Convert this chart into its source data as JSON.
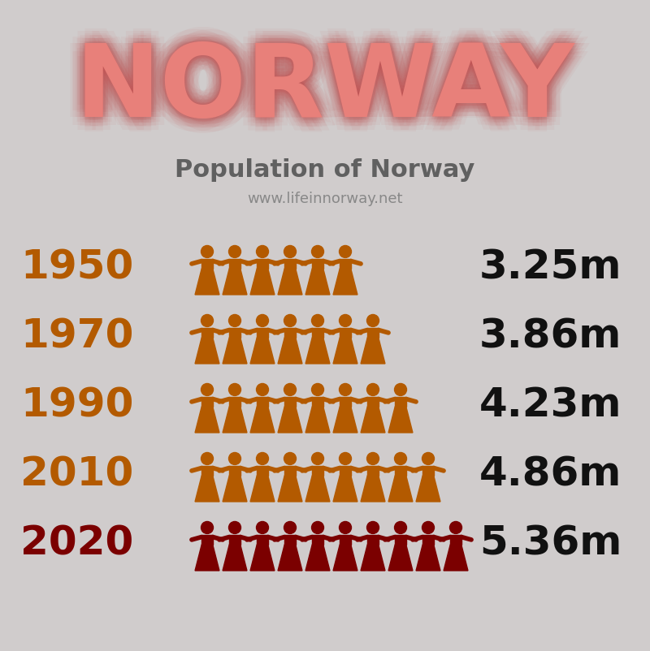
{
  "title": "NORWAY",
  "subtitle": "Population of Norway",
  "website": "www.lifeinnorway.net",
  "background_color": "#d0cccc",
  "title_color": "#e8807a",
  "title_glow_color": "#c05555",
  "subtitle_color": "#606060",
  "website_color": "#888888",
  "years": [
    "1950",
    "1970",
    "1990",
    "2010",
    "2020"
  ],
  "year_colors": [
    "#b35a00",
    "#b35a00",
    "#b35a00",
    "#b35a00",
    "#7b0000"
  ],
  "values": [
    "3.25m",
    "3.86m",
    "4.23m",
    "4.86m",
    "5.36m"
  ],
  "value_color": "#111111",
  "figure_counts": [
    6,
    7,
    8,
    9,
    10
  ],
  "figure_colors": [
    "#b35a00",
    "#b35a00",
    "#b35a00",
    "#b35a00",
    "#7b0000"
  ]
}
